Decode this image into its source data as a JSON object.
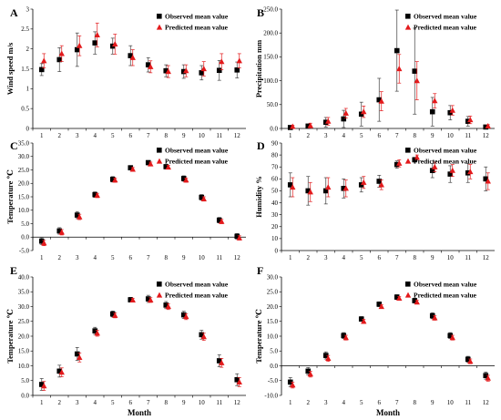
{
  "colors": {
    "observed": "#000000",
    "predicted": "#e31a1c",
    "error_bar": "#404040",
    "axis": "#000000"
  },
  "legend_labels": {
    "observed": "Observed mean value",
    "predicted": "Predicted mean value"
  },
  "x_label": "Month",
  "chart_data": [
    {
      "panel": "A",
      "type": "scatter",
      "ylabel": "Wind speed m/s",
      "ylim": [
        0,
        3
      ],
      "y_ticks": [
        "0",
        "0.5",
        "1",
        "1.5",
        "2",
        "2.5",
        "3"
      ],
      "x": [
        1,
        2,
        3,
        4,
        5,
        6,
        7,
        8,
        9,
        10,
        11,
        12
      ],
      "x_ticks": [
        "1",
        "2",
        "3",
        "4",
        "5",
        "6",
        "7",
        "8",
        "9",
        "10",
        "11",
        "12"
      ],
      "legend": "top-right",
      "series": [
        {
          "name": "Observed mean value",
          "marker": "square",
          "values": [
            1.48,
            1.73,
            1.98,
            2.15,
            2.07,
            1.83,
            1.6,
            1.45,
            1.43,
            1.4,
            1.46,
            1.47
          ],
          "errors": [
            0.15,
            0.3,
            0.42,
            0.28,
            0.2,
            0.25,
            0.18,
            0.15,
            0.17,
            0.18,
            0.25,
            0.2
          ]
        },
        {
          "name": "Predicted mean value",
          "marker": "triangle",
          "values": [
            1.7,
            1.88,
            2.08,
            2.35,
            2.12,
            1.78,
            1.55,
            1.43,
            1.45,
            1.5,
            1.68,
            1.7
          ],
          "errors": [
            0.18,
            0.2,
            0.25,
            0.3,
            0.25,
            0.2,
            0.15,
            0.15,
            0.15,
            0.18,
            0.2,
            0.18
          ]
        }
      ]
    },
    {
      "panel": "B",
      "type": "scatter",
      "ylabel": "Precipitation mm",
      "ylim": [
        0,
        250
      ],
      "y_ticks": [
        "0.0",
        "50.0",
        "100.0",
        "150.0",
        "200.0",
        "250.0"
      ],
      "x": [
        1,
        2,
        3,
        4,
        5,
        6,
        7,
        8,
        9,
        10,
        11,
        12
      ],
      "x_ticks": [
        "1",
        "2",
        "3",
        "4",
        "5",
        "6",
        "7",
        "8",
        "9",
        "10",
        "11",
        "12"
      ],
      "legend": "top-right",
      "series": [
        {
          "name": "Observed mean value",
          "marker": "square",
          "values": [
            2,
            5,
            13,
            20,
            30,
            60,
            163,
            120,
            35,
            33,
            15,
            3
          ],
          "errors": [
            2,
            4,
            10,
            18,
            25,
            45,
            85,
            90,
            30,
            15,
            10,
            2
          ]
        },
        {
          "name": "Predicted mean value",
          "marker": "triangle",
          "values": [
            4,
            6,
            15,
            32,
            35,
            57,
            125,
            100,
            58,
            38,
            18,
            5
          ],
          "errors": [
            3,
            5,
            8,
            10,
            12,
            20,
            30,
            40,
            15,
            10,
            8,
            3
          ]
        }
      ]
    },
    {
      "panel": "C",
      "type": "scatter",
      "ylabel": "Temperature ℃",
      "ylim": [
        -5,
        35
      ],
      "y_ticks": [
        "-5.0",
        "0.0",
        "5.0",
        "10.0",
        "15.0",
        "20.0",
        "25.0",
        "30.0",
        "35.0"
      ],
      "x": [
        1,
        2,
        3,
        4,
        5,
        6,
        7,
        8,
        9,
        10,
        11,
        12
      ],
      "x_ticks": [
        "1",
        "2",
        "3",
        "4",
        "5",
        "6",
        "7",
        "8",
        "9",
        "10",
        "11",
        "12"
      ],
      "legend": "top-right",
      "series": [
        {
          "name": "Observed mean value",
          "marker": "square",
          "values": [
            -1.5,
            2.3,
            8.2,
            15.8,
            21.5,
            25.8,
            27.7,
            26.2,
            21.8,
            14.8,
            6.3,
            0.3
          ],
          "errors": [
            1.2,
            1.2,
            1.3,
            1,
            1,
            0.8,
            0.8,
            0.8,
            1,
            1,
            1,
            1
          ]
        },
        {
          "name": "Predicted mean value",
          "marker": "triangle",
          "values": [
            -2.2,
            1.8,
            7.5,
            15.5,
            21.2,
            25.2,
            27.2,
            26,
            21.2,
            14.2,
            5.8,
            -0.3
          ],
          "errors": [
            1,
            1,
            1,
            0.8,
            0.8,
            0.7,
            0.7,
            0.7,
            0.8,
            0.8,
            0.8,
            0.8
          ]
        }
      ]
    },
    {
      "panel": "D",
      "type": "scatter",
      "ylabel": "Humidity %",
      "ylim": [
        0,
        90
      ],
      "y_ticks": [
        "0",
        "10",
        "20",
        "30",
        "40",
        "50",
        "60",
        "70",
        "80",
        "90"
      ],
      "x": [
        1,
        2,
        3,
        4,
        5,
        6,
        7,
        8,
        9,
        10,
        11,
        12
      ],
      "x_ticks": [
        "1",
        "2",
        "3",
        "4",
        "5",
        "6",
        "7",
        "8",
        "9",
        "10",
        "11",
        "12"
      ],
      "legend": "top-right",
      "series": [
        {
          "name": "Observed mean value",
          "marker": "square",
          "values": [
            55,
            50,
            50,
            52,
            55,
            58,
            72,
            76,
            67,
            64,
            65,
            60
          ],
          "errors": [
            10,
            12,
            11,
            8,
            6,
            5,
            3,
            2,
            6,
            7,
            8,
            10
          ]
        },
        {
          "name": "Predicted mean value",
          "marker": "triangle",
          "values": [
            53,
            49,
            53,
            52,
            57,
            55,
            73,
            78,
            70,
            67,
            66,
            58
          ],
          "errors": [
            8,
            8,
            8,
            7,
            5,
            4,
            3,
            2,
            4,
            5,
            6,
            7
          ]
        }
      ]
    },
    {
      "panel": "E",
      "type": "scatter",
      "ylabel": "Temperature ℃",
      "ylim": [
        0,
        40
      ],
      "y_ticks": [
        "0.0",
        "5.0",
        "10.0",
        "15.0",
        "20.0",
        "25.0",
        "30.0",
        "35.0",
        "40.0"
      ],
      "x": [
        1,
        2,
        3,
        4,
        5,
        6,
        7,
        8,
        9,
        10,
        11,
        12
      ],
      "x_ticks": [
        "1",
        "2",
        "3",
        "4",
        "5",
        "6",
        "7",
        "8",
        "9",
        "10",
        "11",
        "12"
      ],
      "legend": "top-right",
      "series": [
        {
          "name": "Observed mean value",
          "marker": "square",
          "values": [
            3.7,
            8.2,
            14,
            21.8,
            27.5,
            32.3,
            32.6,
            30.5,
            27.2,
            20.5,
            11.7,
            5.3
          ],
          "errors": [
            2,
            2,
            2.2,
            1.2,
            1,
            0.8,
            1.2,
            1.2,
            1.2,
            1.5,
            2,
            2
          ]
        },
        {
          "name": "Predicted mean value",
          "marker": "triangle",
          "values": [
            3.2,
            7.8,
            12.8,
            21,
            27,
            32.2,
            32.2,
            30,
            26.6,
            19.8,
            11,
            4.5
          ],
          "errors": [
            1.5,
            1.5,
            1.5,
            1,
            0.8,
            0.6,
            0.8,
            1,
            1,
            1.2,
            1.5,
            1.5
          ]
        }
      ]
    },
    {
      "panel": "F",
      "type": "scatter",
      "ylabel": "Temperature ℃",
      "ylim": [
        -10,
        30
      ],
      "y_ticks": [
        "-10.0",
        "-5.0",
        "0.0",
        "5.0",
        "10.0",
        "15.0",
        "20.0",
        "25.0",
        "30.0"
      ],
      "x": [
        1,
        2,
        3,
        4,
        5,
        6,
        7,
        8,
        9,
        10,
        11,
        12
      ],
      "x_ticks": [
        "1",
        "2",
        "3",
        "4",
        "5",
        "6",
        "7",
        "8",
        "9",
        "10",
        "11",
        "12"
      ],
      "legend": "top-right",
      "series": [
        {
          "name": "Observed mean value",
          "marker": "square",
          "values": [
            -5.5,
            -1.8,
            3.5,
            10.2,
            15.8,
            20.8,
            23.2,
            22,
            16.9,
            10.2,
            2.2,
            -3.3
          ],
          "errors": [
            1.5,
            1.2,
            1.2,
            1,
            0.8,
            0.8,
            0.8,
            0.8,
            1,
            1,
            1,
            1.2
          ]
        },
        {
          "name": "Predicted mean value",
          "marker": "triangle",
          "values": [
            -6.5,
            -2.8,
            2.5,
            9.5,
            15,
            20,
            22.8,
            21.5,
            16.2,
            9.5,
            1.5,
            -4.2
          ],
          "errors": [
            1,
            1,
            1,
            0.8,
            0.7,
            0.6,
            0.6,
            0.6,
            0.8,
            0.8,
            0.8,
            1
          ]
        }
      ]
    }
  ]
}
